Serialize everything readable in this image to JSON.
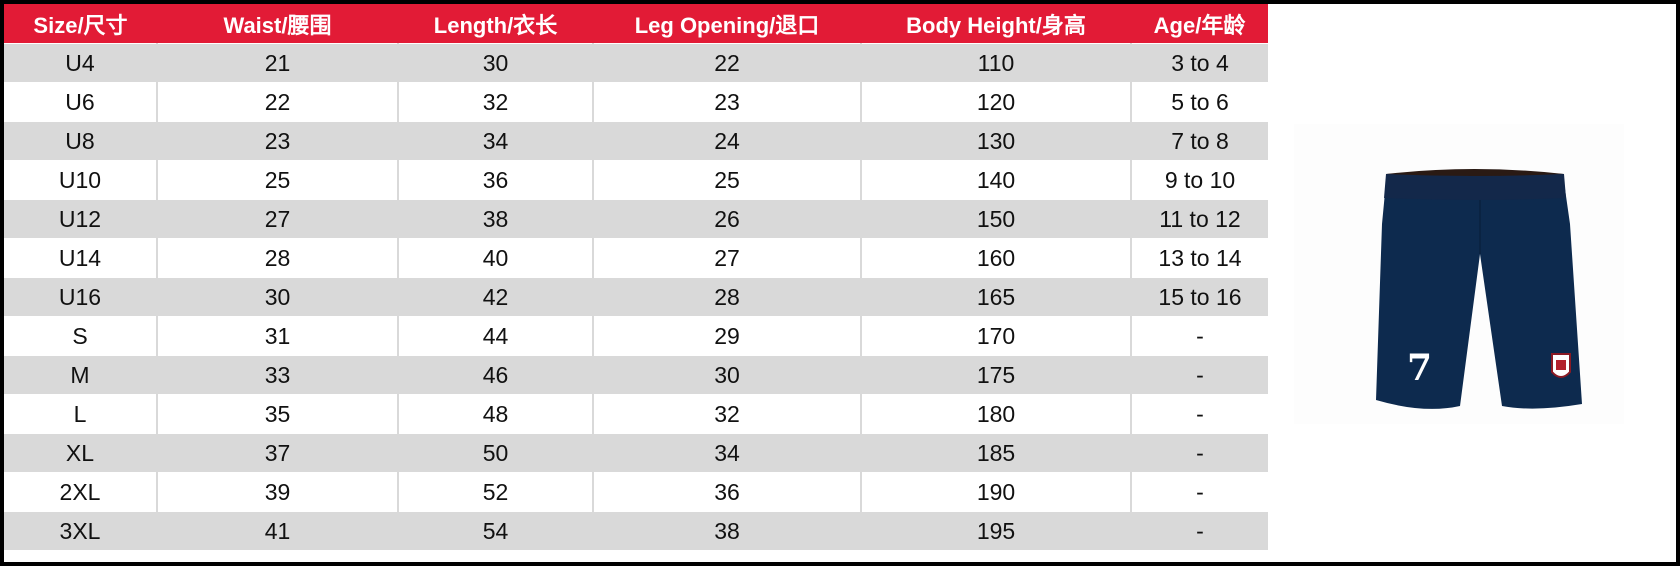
{
  "headers": [
    "Size/尺寸",
    "Waist/腰围",
    "Length/衣长",
    "Leg Opening/退口",
    "Body Height/身高",
    "Age/年龄"
  ],
  "rows": [
    [
      "U4",
      "21",
      "30",
      "22",
      "110",
      "3 to 4"
    ],
    [
      "U6",
      "22",
      "32",
      "23",
      "120",
      "5 to 6"
    ],
    [
      "U8",
      "23",
      "34",
      "24",
      "130",
      "7 to 8"
    ],
    [
      "U10",
      "25",
      "36",
      "25",
      "140",
      "9 to 10"
    ],
    [
      "U12",
      "27",
      "38",
      "26",
      "150",
      "11 to 12"
    ],
    [
      "U14",
      "28",
      "40",
      "27",
      "160",
      "13 to 14"
    ],
    [
      "U16",
      "30",
      "42",
      "28",
      "165",
      "15 to 16"
    ],
    [
      "S",
      "31",
      "44",
      "29",
      "170",
      "-"
    ],
    [
      "M",
      "33",
      "46",
      "30",
      "175",
      "-"
    ],
    [
      "L",
      "35",
      "48",
      "32",
      "180",
      "-"
    ],
    [
      "XL",
      "37",
      "50",
      "34",
      "185",
      "-"
    ],
    [
      "2XL",
      "39",
      "52",
      "36",
      "190",
      "-"
    ],
    [
      "3XL",
      "41",
      "54",
      "38",
      "195",
      "-"
    ]
  ],
  "product_image": {
    "number": "7",
    "shorts_color": "#0d2a4e",
    "header_color": "#e21b36"
  }
}
